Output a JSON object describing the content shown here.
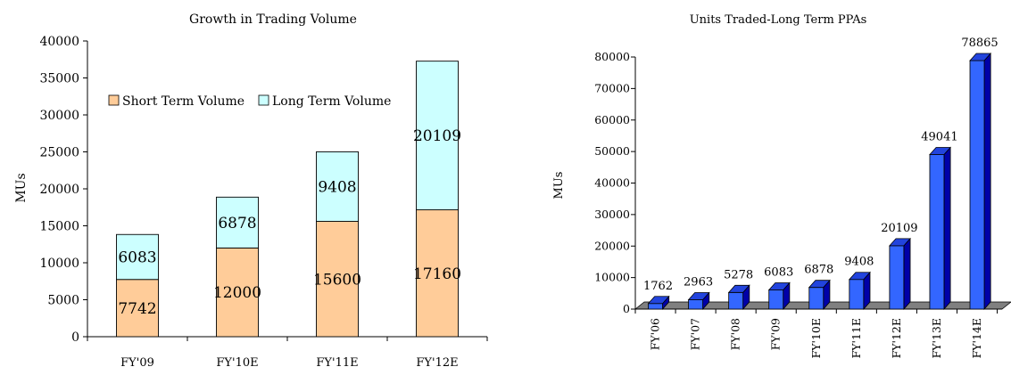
{
  "chart_data": [
    {
      "type": "bar",
      "stacked": true,
      "title": "Growth in Trading Volume",
      "ylabel": "MUs",
      "xlabel": "",
      "ylim": [
        0,
        40000
      ],
      "yticks": [
        0,
        5000,
        10000,
        15000,
        20000,
        25000,
        30000,
        35000,
        40000
      ],
      "categories": [
        "FY'09",
        "FY'10E",
        "FY'11E",
        "FY'12E"
      ],
      "series": [
        {
          "name": "Short Term Volume",
          "values": [
            7742,
            12000,
            15600,
            17160
          ],
          "color": "#FFCC99"
        },
        {
          "name": "Long Term Volume",
          "values": [
            6083,
            6878,
            9408,
            20109
          ],
          "color": "#CCFFFF"
        }
      ],
      "legend": "top-left inside",
      "grid": false
    },
    {
      "type": "bar",
      "style": "3d",
      "title": "Units Traded-Long Term PPAs",
      "ylabel": "MUs",
      "xlabel": "",
      "ylim": [
        0,
        80000
      ],
      "yticks": [
        0,
        10000,
        20000,
        30000,
        40000,
        50000,
        60000,
        70000,
        80000
      ],
      "categories": [
        "FY'06",
        "FY'07",
        "FY'08",
        "FY'09",
        "FY'10E",
        "FY'11E",
        "FY'12E",
        "FY'13E",
        "FY'14E"
      ],
      "values": [
        1762,
        2963,
        5278,
        6083,
        6878,
        9408,
        20109,
        49041,
        78865
      ],
      "color": "#3366FF",
      "floor_color": "#808080",
      "grid": false
    }
  ]
}
